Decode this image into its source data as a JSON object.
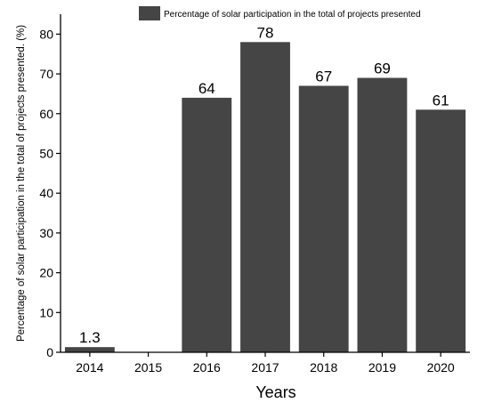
{
  "chart_data": {
    "type": "bar",
    "categories": [
      "2014",
      "2015",
      "2016",
      "2017",
      "2018",
      "2019",
      "2020"
    ],
    "series": [
      {
        "name": "Percentage of solar participation in the total of projects presented",
        "values": [
          1.3,
          0,
          64,
          78,
          67,
          69,
          61
        ],
        "data_labels": [
          "1.3",
          "",
          "64",
          "78",
          "67",
          "69",
          "61"
        ],
        "color": "#454545"
      }
    ],
    "xlabel": "Years",
    "ylabel": "Percentage of solar participation in the total of projects presented. (%)",
    "ylim": [
      0,
      85
    ],
    "yticks": [
      0,
      10,
      20,
      30,
      40,
      50,
      60,
      70,
      80
    ],
    "grid": false,
    "legend_position": "top-center"
  }
}
